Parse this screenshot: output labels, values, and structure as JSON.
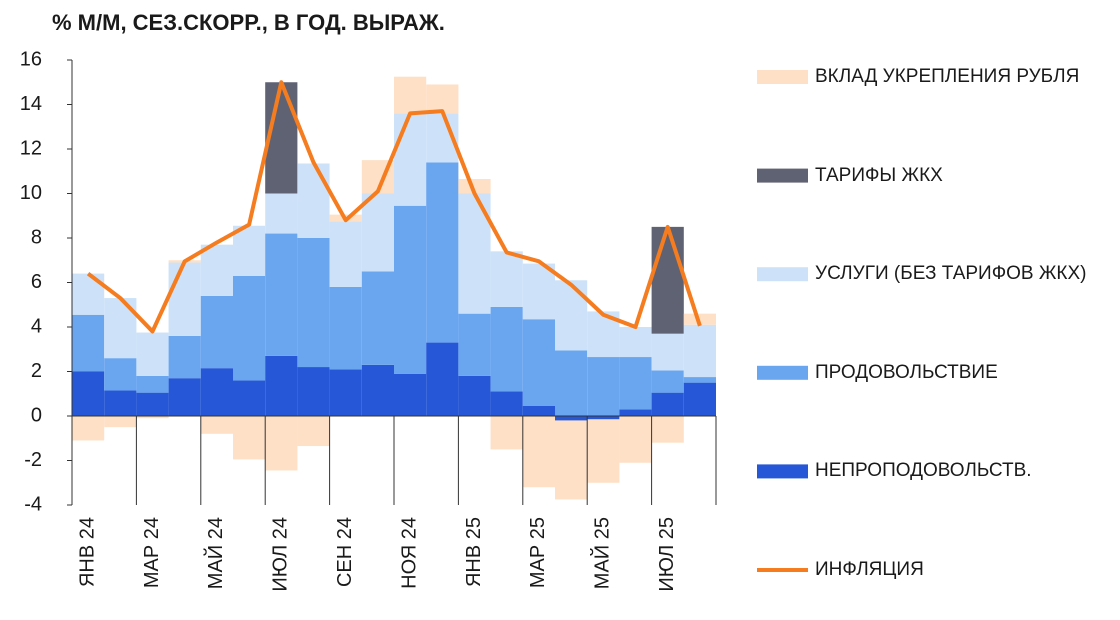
{
  "chart_data": {
    "type": "bar",
    "stacked": true,
    "title": "% М/М, СЕЗ.СКОРР., В ГОД. ВЫРАЖ.",
    "categories": [
      "ЯНВ 24",
      null,
      "МАР 24",
      null,
      "МАЙ 24",
      null,
      "ИЮЛ 24",
      null,
      "СЕН 24",
      null,
      "НОЯ 24",
      null,
      "ЯНВ 25",
      null,
      "МАР 25",
      null,
      "МАЙ 25",
      null,
      "ИЮЛ 25",
      null
    ],
    "ylim": [
      -4,
      16
    ],
    "yticks": [
      -4,
      -2,
      0,
      2,
      4,
      6,
      8,
      10,
      12,
      14,
      16
    ],
    "series": [
      {
        "name": "НЕПРОПОДОВОЛЬСТВ.",
        "color": "#2557d6",
        "values": [
          2.0,
          1.15,
          1.05,
          1.7,
          2.15,
          1.6,
          2.7,
          2.2,
          2.1,
          2.3,
          1.9,
          3.3,
          1.8,
          1.1,
          0.45,
          -0.2,
          -0.15,
          0.3,
          1.05,
          1.5
        ]
      },
      {
        "name": "ПРОДОВОЛЬСТВИЕ",
        "color": "#6aa6f0",
        "values": [
          2.55,
          1.45,
          0.75,
          1.9,
          3.25,
          4.7,
          5.5,
          5.8,
          3.7,
          4.2,
          7.55,
          8.1,
          2.8,
          3.8,
          3.9,
          2.95,
          2.65,
          2.35,
          1.0,
          0.25
        ]
      },
      {
        "name": "УСЛУГИ (БЕЗ ТАРИФОВ ЖКХ)",
        "color": "#cde2f8",
        "values": [
          1.85,
          2.7,
          1.95,
          3.3,
          2.3,
          2.25,
          1.8,
          3.35,
          2.95,
          3.5,
          4.15,
          2.2,
          5.4,
          2.5,
          2.5,
          3.15,
          2.05,
          1.35,
          1.65,
          2.35
        ]
      },
      {
        "name": "ТАРИФЫ ЖКХ",
        "color": "#5f6272",
        "values": [
          null,
          null,
          null,
          null,
          null,
          null,
          5.0,
          null,
          null,
          null,
          null,
          null,
          null,
          null,
          null,
          null,
          null,
          null,
          4.8,
          null
        ]
      },
      {
        "name": "ВКЛАД УКРЕПЛЕНИЯ РУБЛЯ",
        "color": "#fde0c5",
        "values": [
          -1.1,
          -0.5,
          -0.1,
          0.1,
          -0.8,
          -1.95,
          -2.45,
          -1.35,
          0.3,
          1.5,
          1.65,
          1.3,
          0.65,
          -1.5,
          -3.2,
          -3.55,
          -2.85,
          -2.1,
          -1.2,
          0.5
        ]
      },
      {
        "name": "ИНФЛЯЦИЯ",
        "color": "#f57c1f",
        "type": "line",
        "values": [
          6.4,
          5.3,
          3.8,
          6.95,
          7.8,
          8.6,
          15.0,
          11.4,
          8.8,
          10.1,
          13.6,
          13.7,
          10.0,
          7.35,
          6.95,
          5.9,
          4.55,
          4.0,
          8.5,
          4.05
        ]
      }
    ]
  }
}
